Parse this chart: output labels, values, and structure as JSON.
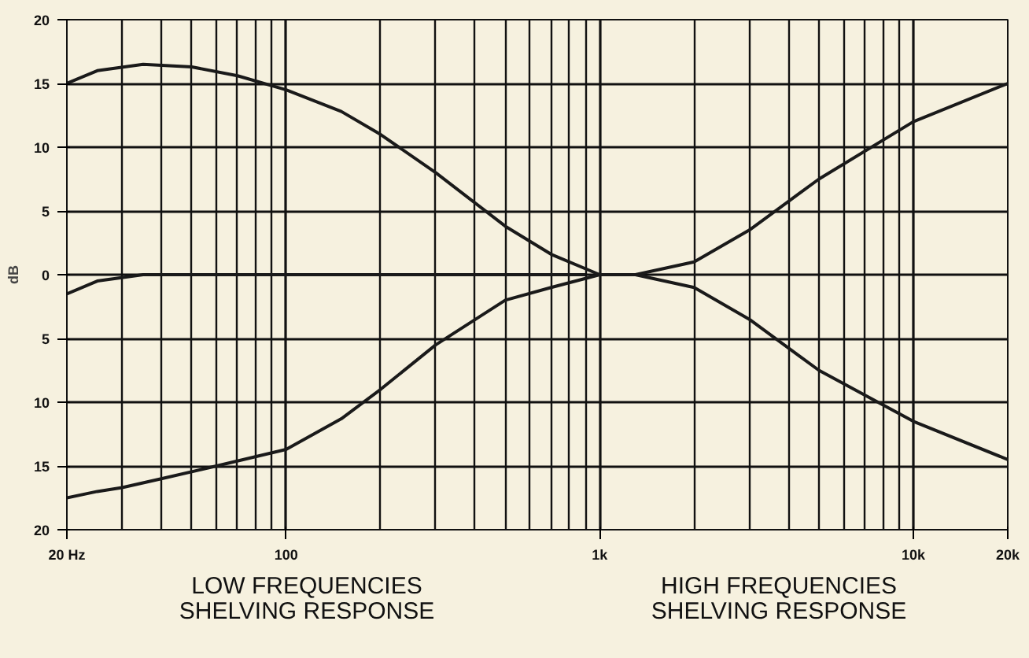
{
  "chart_data": {
    "type": "line",
    "ylabel": "dB",
    "xlim": [
      20,
      20000
    ],
    "ylim": [
      -20,
      20
    ],
    "log": "x",
    "grid": true,
    "marker": "none",
    "line_style": "solid",
    "xticks": [
      {
        "value": 20,
        "label": "20 Hz"
      },
      100,
      {
        "value": 1000,
        "label": "1k"
      },
      {
        "value": 10000,
        "label": "10k"
      },
      {
        "value": 20000,
        "label": "20k"
      }
    ],
    "yticks": [
      {
        "value": -20,
        "label": "20"
      },
      {
        "value": -15,
        "label": "15"
      },
      {
        "value": -10,
        "label": "10"
      },
      {
        "value": -5,
        "label": "5"
      },
      0,
      5,
      10,
      15,
      20
    ],
    "series": [
      {
        "color": "#1a1a1a",
        "x": [
          20,
          25,
          35,
          50,
          70,
          100,
          150,
          200,
          300,
          500,
          700,
          1000,
          1300,
          2000,
          3000,
          5000,
          10000,
          20000
        ],
        "values": [
          15,
          16,
          16.5,
          16.3,
          15.6,
          14.5,
          12.8,
          11,
          8,
          3.8,
          1.6,
          0,
          0,
          1,
          3.5,
          7.5,
          12,
          15
        ]
      },
      {
        "color": "#1a1a1a",
        "x": [
          20,
          25,
          30,
          40,
          60,
          100,
          150,
          200,
          300,
          500,
          700,
          1000,
          1300,
          2000,
          3000,
          5000,
          10000,
          20000
        ],
        "values": [
          -17.5,
          -17,
          -16.7,
          -16,
          -15,
          -13.7,
          -11.3,
          -9,
          -5.5,
          -2,
          -1,
          0,
          0,
          -1,
          -3.5,
          -7.5,
          -11.5,
          -14.5
        ]
      },
      {
        "color": "#1a1a1a",
        "x": [
          20,
          25,
          35,
          900
        ],
        "values": [
          -1.5,
          -0.5,
          0,
          0
        ]
      }
    ],
    "annotations": [
      "LOW FREQUENCIES\nSHELVING RESPONSE",
      "HIGH FREQUENCIES\nSHELVING RESPONSE"
    ]
  }
}
